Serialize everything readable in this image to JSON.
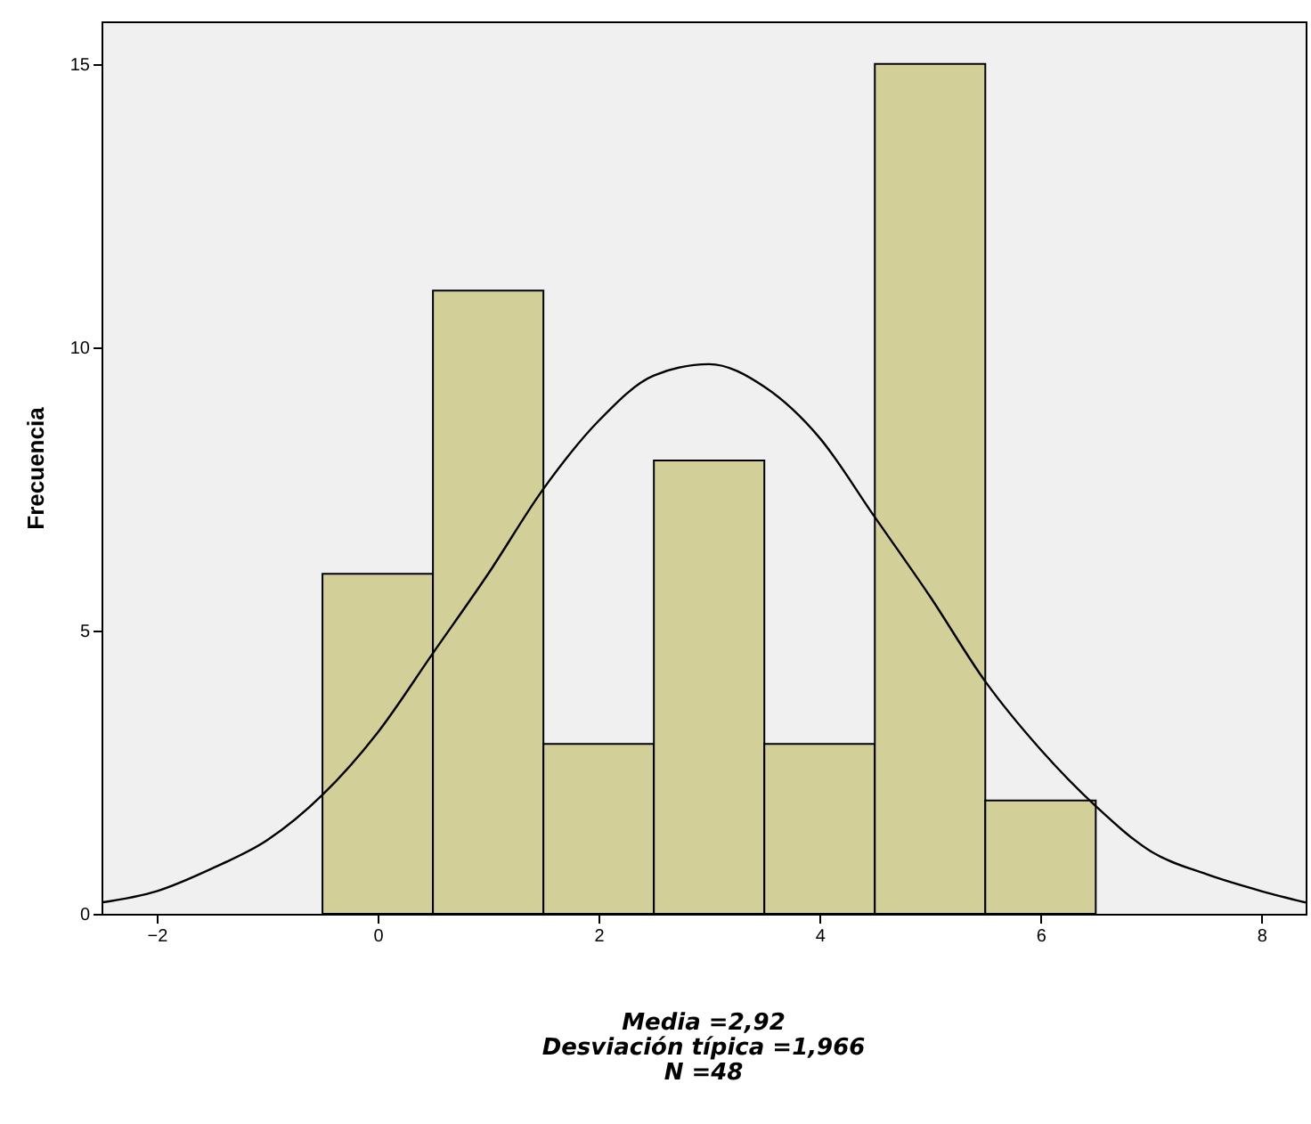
{
  "chart_data": {
    "type": "histogram",
    "ylabel": "Frecuencia",
    "bins": [
      -0.5,
      0.5,
      1.5,
      2.5,
      3.5,
      4.5,
      5.5,
      6.5
    ],
    "values": [
      6,
      11,
      3,
      8,
      3,
      15,
      2
    ],
    "color": "#d3cf98",
    "series": [
      {
        "type": "line",
        "color": "#000000",
        "x": [
          -2.5,
          -2,
          -1.5,
          -1,
          -0.5,
          0,
          0.5,
          1,
          1.5,
          2,
          2.5,
          3,
          3.5,
          4,
          4.5,
          5,
          5.5,
          6,
          6.5,
          7,
          7.5,
          8,
          8.4
        ],
        "values": [
          0.2,
          0.4,
          0.8,
          1.3,
          2.1,
          3.2,
          4.6,
          6.0,
          7.5,
          8.7,
          9.5,
          9.7,
          9.3,
          8.4,
          7.0,
          5.6,
          4.1,
          2.9,
          1.9,
          1.1,
          0.7,
          0.4,
          0.2
        ]
      }
    ],
    "xlim": [
      -2.5,
      8.4
    ],
    "xticks": [
      -2,
      0,
      2,
      4,
      6,
      8
    ],
    "ylim": [
      0,
      15.75
    ],
    "yticks": [
      0,
      5,
      10,
      15
    ],
    "grid": false,
    "annotations": [
      "Media =2,92",
      "Desviación típica =1,966",
      "N =48"
    ]
  }
}
